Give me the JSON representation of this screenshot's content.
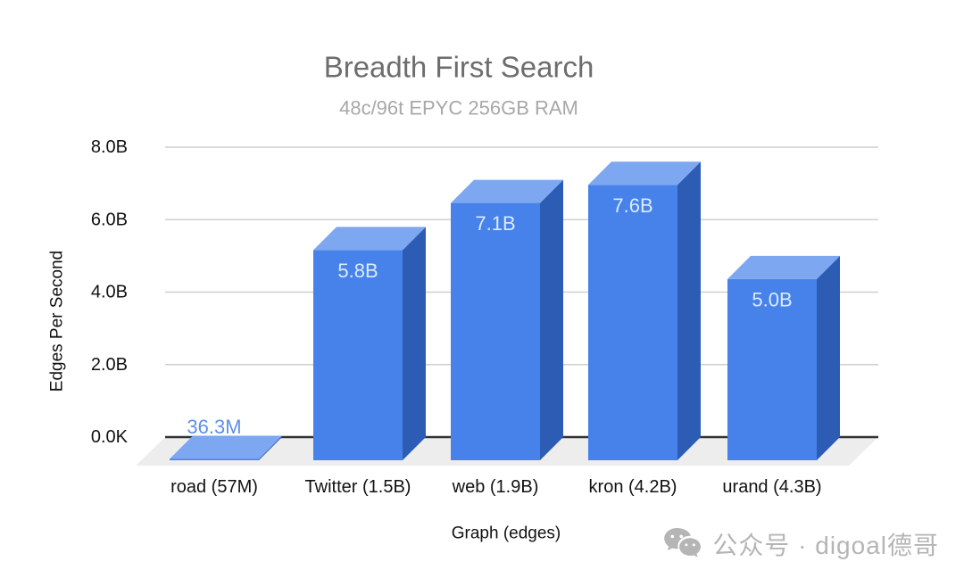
{
  "chart_data": {
    "type": "bar",
    "style": "3d-column",
    "title": "Breadth First Search",
    "subtitle": "48c/96t EPYC 256GB RAM",
    "xlabel": "Graph (edges)",
    "ylabel": "Edges Per Second",
    "categories": [
      "road (57M)",
      "Twitter (1.5B)",
      "web (1.9B)",
      "kron (4.2B)",
      "urand (4.3B)"
    ],
    "values_billions": [
      0.0363,
      5.8,
      7.1,
      7.6,
      5.0
    ],
    "value_labels": [
      "36.3M",
      "5.8B",
      "7.1B",
      "7.6B",
      "5.0B"
    ],
    "ytick_labels": [
      "0.0K",
      "2.0B",
      "4.0B",
      "6.0B",
      "8.0B"
    ],
    "ylim": [
      0,
      8
    ],
    "grid": true,
    "legend": "none"
  },
  "colors": {
    "bar_front": "#4682ea",
    "bar_top": "#7da7f1",
    "bar_side": "#2d5cb5",
    "value_label_inside": "#dcebfc",
    "value_label_outside": "#5f8fe9",
    "gridline": "#cfcfcf",
    "baseline": "#333333",
    "floor": "#ededed",
    "title": "#6d6d6d",
    "subtitle": "#a8a8a8",
    "axis_text": "#111111",
    "watermark": "#b5b5b5"
  },
  "watermark": {
    "icon": "wechat-icon",
    "text": "公众号 · digoal德哥"
  }
}
